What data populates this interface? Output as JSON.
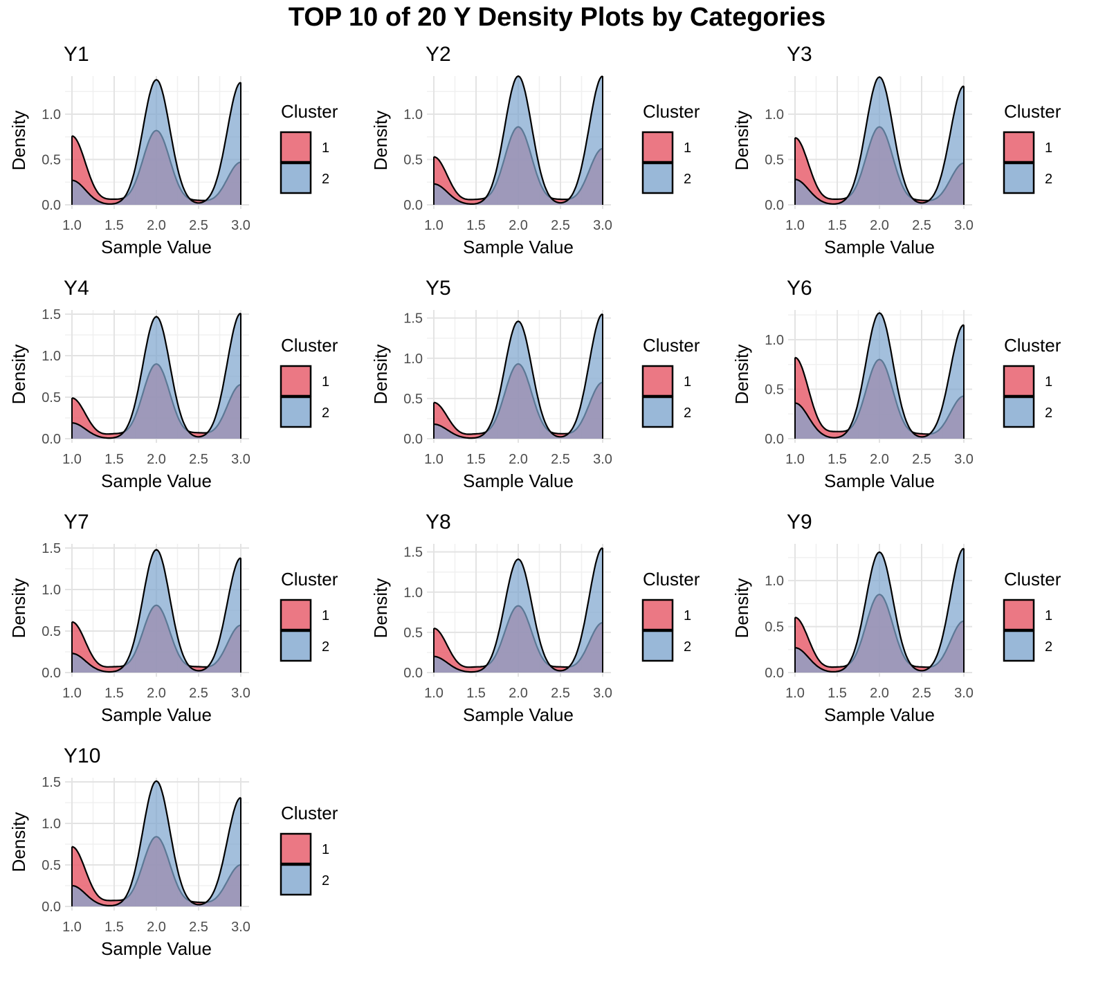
{
  "figure": {
    "title": "TOP 10 of 20 Y Density Plots by Categories"
  },
  "colors": {
    "cluster1": "#E8606F",
    "cluster2": "#7FA6CE",
    "outline": "#000000",
    "grid_major": "#e3e3e3",
    "grid_minor": "#f0f0f0"
  },
  "chart_data": [
    {
      "type": "area",
      "title": "Y1",
      "xlabel": "Sample Value",
      "ylabel": "Density",
      "xlim": [
        1,
        3
      ],
      "xticks": [
        "1.0",
        "1.5",
        "2.0",
        "2.5",
        "3.0"
      ],
      "ylim": [
        0,
        1.42
      ],
      "yticks": [
        "0.0",
        "0.5",
        "1.0"
      ],
      "legend": {
        "title": "Cluster",
        "entries": [
          "1",
          "2"
        ],
        "position": "right"
      },
      "series": [
        {
          "name": "1",
          "peaks": [
            0.76,
            0.82,
            0.47
          ],
          "trough1": 0.05,
          "trough2": 0.04
        },
        {
          "name": "2",
          "peaks": [
            0.27,
            1.38,
            1.35
          ],
          "trough1": 0.0,
          "trough2": 0.0
        }
      ]
    },
    {
      "type": "area",
      "title": "Y2",
      "xlabel": "Sample Value",
      "ylabel": "Density",
      "xlim": [
        1,
        3
      ],
      "xticks": [
        "1.0",
        "1.5",
        "2.0",
        "2.5",
        "3.0"
      ],
      "ylim": [
        0,
        1.42
      ],
      "yticks": [
        "0.0",
        "0.5",
        "1.0"
      ],
      "legend": {
        "title": "Cluster",
        "entries": [
          "1",
          "2"
        ],
        "position": "right"
      },
      "series": [
        {
          "name": "1",
          "peaks": [
            0.53,
            0.86,
            0.62
          ],
          "trough1": 0.05,
          "trough2": 0.05
        },
        {
          "name": "2",
          "peaks": [
            0.23,
            1.42,
            1.42
          ],
          "trough1": 0.0,
          "trough2": 0.0
        }
      ]
    },
    {
      "type": "area",
      "title": "Y3",
      "xlabel": "Sample Value",
      "ylabel": "Density",
      "xlim": [
        1,
        3
      ],
      "xticks": [
        "1.0",
        "1.5",
        "2.0",
        "2.5",
        "3.0"
      ],
      "ylim": [
        0,
        1.42
      ],
      "yticks": [
        "0.0",
        "0.5",
        "1.0"
      ],
      "legend": {
        "title": "Cluster",
        "entries": [
          "1",
          "2"
        ],
        "position": "right"
      },
      "series": [
        {
          "name": "1",
          "peaks": [
            0.74,
            0.86,
            0.46
          ],
          "trough1": 0.05,
          "trough2": 0.04
        },
        {
          "name": "2",
          "peaks": [
            0.28,
            1.41,
            1.31
          ],
          "trough1": 0.0,
          "trough2": 0.0
        }
      ]
    },
    {
      "type": "area",
      "title": "Y4",
      "xlabel": "Sample Value",
      "ylabel": "Density",
      "xlim": [
        1,
        3
      ],
      "xticks": [
        "1.0",
        "1.5",
        "2.0",
        "2.5",
        "3.0"
      ],
      "ylim": [
        0,
        1.55
      ],
      "yticks": [
        "0.0",
        "0.5",
        "1.0",
        "1.5"
      ],
      "legend": {
        "title": "Cluster",
        "entries": [
          "1",
          "2"
        ],
        "position": "right"
      },
      "series": [
        {
          "name": "1",
          "peaks": [
            0.49,
            0.9,
            0.65
          ],
          "trough1": 0.05,
          "trough2": 0.06
        },
        {
          "name": "2",
          "peaks": [
            0.19,
            1.47,
            1.51
          ],
          "trough1": 0.0,
          "trough2": 0.0
        }
      ]
    },
    {
      "type": "area",
      "title": "Y5",
      "xlabel": "Sample Value",
      "ylabel": "Density",
      "xlim": [
        1,
        3
      ],
      "xticks": [
        "1.0",
        "1.5",
        "2.0",
        "2.5",
        "3.0"
      ],
      "ylim": [
        0,
        1.6
      ],
      "yticks": [
        "0.0",
        "0.5",
        "1.0",
        "1.5"
      ],
      "legend": {
        "title": "Cluster",
        "entries": [
          "1",
          "2"
        ],
        "position": "right"
      },
      "series": [
        {
          "name": "1",
          "peaks": [
            0.45,
            0.93,
            0.7
          ],
          "trough1": 0.05,
          "trough2": 0.05
        },
        {
          "name": "2",
          "peaks": [
            0.18,
            1.46,
            1.55
          ],
          "trough1": 0.0,
          "trough2": 0.0
        }
      ]
    },
    {
      "type": "area",
      "title": "Y6",
      "xlabel": "Sample Value",
      "ylabel": "Density",
      "xlim": [
        1,
        3
      ],
      "xticks": [
        "1.0",
        "1.5",
        "2.0",
        "2.5",
        "3.0"
      ],
      "ylim": [
        0,
        1.3
      ],
      "yticks": [
        "0.0",
        "0.5",
        "1.0"
      ],
      "legend": {
        "title": "Cluster",
        "entries": [
          "1",
          "2"
        ],
        "position": "right"
      },
      "series": [
        {
          "name": "1",
          "peaks": [
            0.82,
            0.8,
            0.43
          ],
          "trough1": 0.06,
          "trough2": 0.04
        },
        {
          "name": "2",
          "peaks": [
            0.36,
            1.27,
            1.15
          ],
          "trough1": 0.0,
          "trough2": 0.0
        }
      ]
    },
    {
      "type": "area",
      "title": "Y7",
      "xlabel": "Sample Value",
      "ylabel": "Density",
      "xlim": [
        1,
        3
      ],
      "xticks": [
        "1.0",
        "1.5",
        "2.0",
        "2.5",
        "3.0"
      ],
      "ylim": [
        0,
        1.55
      ],
      "yticks": [
        "0.0",
        "0.5",
        "1.0",
        "1.5"
      ],
      "legend": {
        "title": "Cluster",
        "entries": [
          "1",
          "2"
        ],
        "position": "right"
      },
      "series": [
        {
          "name": "1",
          "peaks": [
            0.61,
            0.81,
            0.57
          ],
          "trough1": 0.06,
          "trough2": 0.06
        },
        {
          "name": "2",
          "peaks": [
            0.23,
            1.48,
            1.38
          ],
          "trough1": 0.0,
          "trough2": 0.0
        }
      ]
    },
    {
      "type": "area",
      "title": "Y8",
      "xlabel": "Sample Value",
      "ylabel": "Density",
      "xlim": [
        1,
        3
      ],
      "xticks": [
        "1.0",
        "1.5",
        "2.0",
        "2.5",
        "3.0"
      ],
      "ylim": [
        0,
        1.6
      ],
      "yticks": [
        "0.0",
        "0.5",
        "1.0",
        "1.5"
      ],
      "legend": {
        "title": "Cluster",
        "entries": [
          "1",
          "2"
        ],
        "position": "right"
      },
      "series": [
        {
          "name": "1",
          "peaks": [
            0.55,
            0.83,
            0.62
          ],
          "trough1": 0.06,
          "trough2": 0.06
        },
        {
          "name": "2",
          "peaks": [
            0.2,
            1.41,
            1.55
          ],
          "trough1": 0.0,
          "trough2": 0.0
        }
      ]
    },
    {
      "type": "area",
      "title": "Y9",
      "xlabel": "Sample Value",
      "ylabel": "Density",
      "xlim": [
        1,
        3
      ],
      "xticks": [
        "1.0",
        "1.5",
        "2.0",
        "2.5",
        "3.0"
      ],
      "ylim": [
        0,
        1.4
      ],
      "yticks": [
        "0.0",
        "0.5",
        "1.0"
      ],
      "legend": {
        "title": "Cluster",
        "entries": [
          "1",
          "2"
        ],
        "position": "right"
      },
      "series": [
        {
          "name": "1",
          "peaks": [
            0.6,
            0.85,
            0.56
          ],
          "trough1": 0.05,
          "trough2": 0.05
        },
        {
          "name": "2",
          "peaks": [
            0.27,
            1.31,
            1.35
          ],
          "trough1": 0.0,
          "trough2": 0.0
        }
      ]
    },
    {
      "type": "area",
      "title": "Y10",
      "xlabel": "Sample Value",
      "ylabel": "Density",
      "xlim": [
        1,
        3
      ],
      "xticks": [
        "1.0",
        "1.5",
        "2.0",
        "2.5",
        "3.0"
      ],
      "ylim": [
        0,
        1.55
      ],
      "yticks": [
        "0.0",
        "0.5",
        "1.0",
        "1.5"
      ],
      "legend": {
        "title": "Cluster",
        "entries": [
          "1",
          "2"
        ],
        "position": "right"
      },
      "series": [
        {
          "name": "1",
          "peaks": [
            0.72,
            0.84,
            0.5
          ],
          "trough1": 0.06,
          "trough2": 0.04
        },
        {
          "name": "2",
          "peaks": [
            0.25,
            1.51,
            1.31
          ],
          "trough1": 0.0,
          "trough2": 0.0
        }
      ]
    }
  ]
}
